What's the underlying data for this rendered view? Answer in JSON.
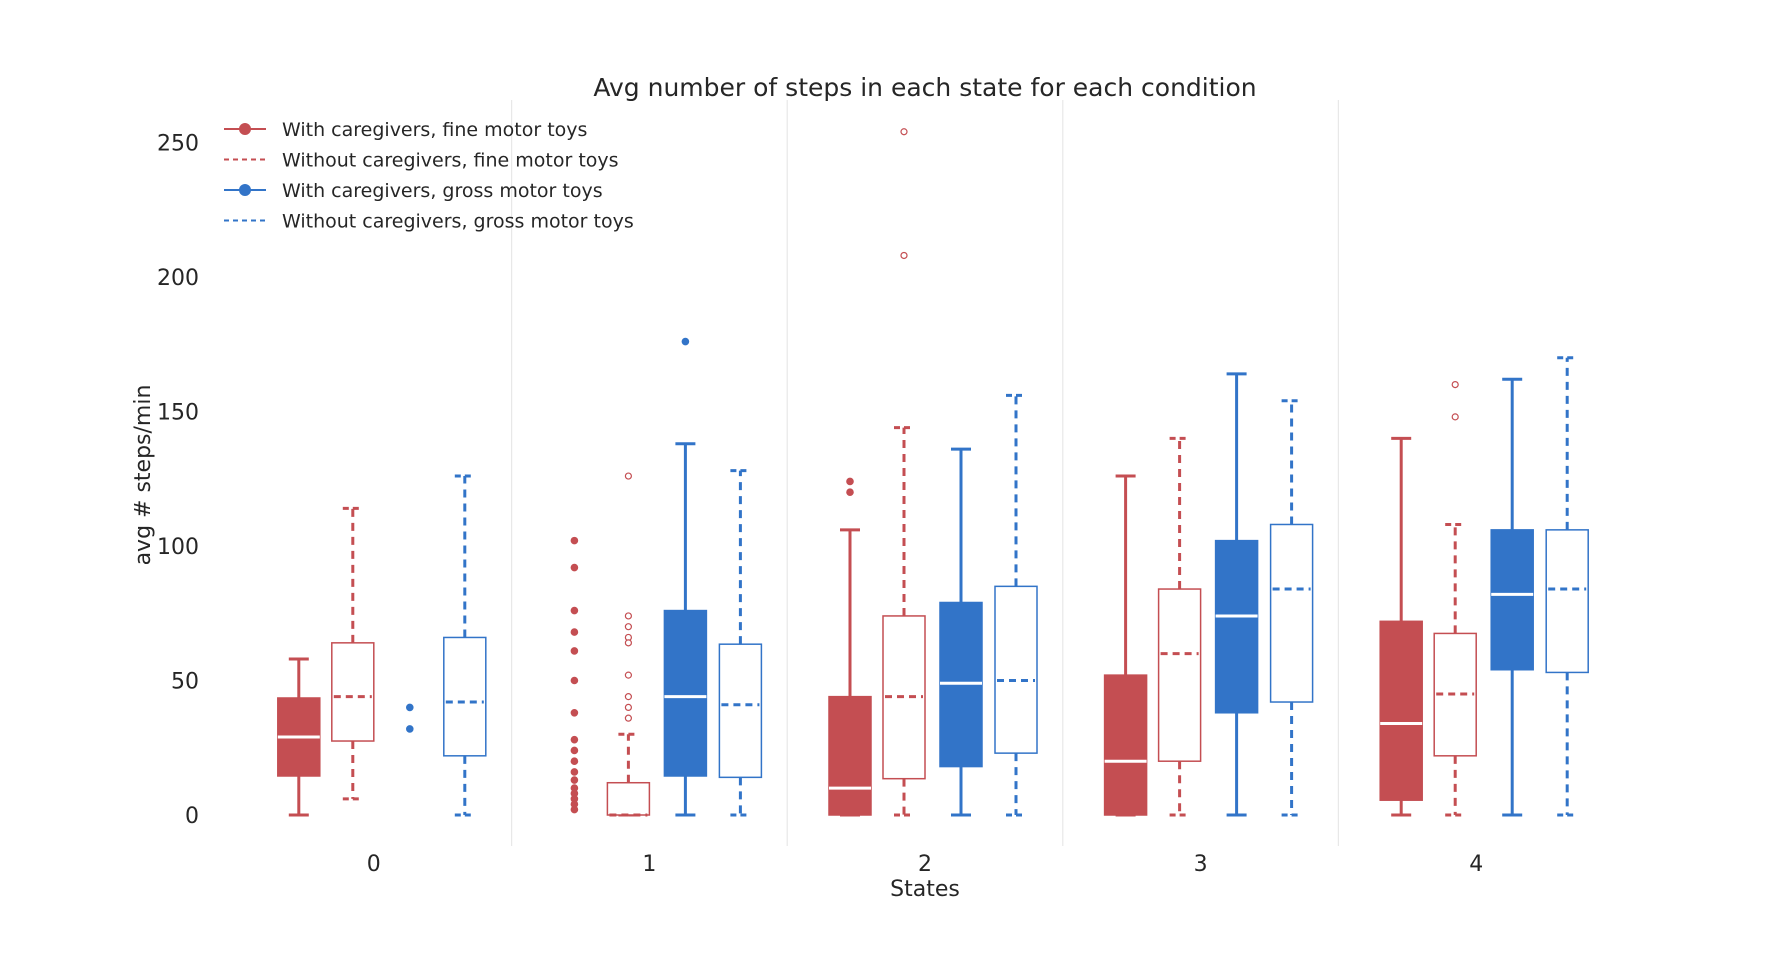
{
  "chart_data": {
    "type": "boxplot",
    "title": "Avg number of steps in each state for each condition",
    "xlabel": "States",
    "ylabel": "avg # steps/min",
    "categories": [
      "0",
      "1",
      "2",
      "3",
      "4"
    ],
    "ylim": [
      -8,
      268
    ],
    "yticks": [
      0,
      50,
      100,
      150,
      200,
      250
    ],
    "grid": "vertical separators between states",
    "legend_position": "top-left",
    "series": [
      {
        "name": "With caregivers, fine motor toys",
        "color": "#c44e52",
        "style": "filled-solid",
        "boxes": [
          {
            "state": "0",
            "whislo": 0,
            "q1": 14.5,
            "med": 29,
            "q3": 43.5,
            "whishi": 58,
            "fliers": []
          },
          {
            "state": "1",
            "whislo": null,
            "q1": null,
            "med": null,
            "q3": null,
            "whishi": null,
            "fliers": [
              102,
              92,
              76,
              68,
              61,
              50,
              38,
              28,
              24,
              20,
              16,
              13,
              10,
              8,
              6,
              4,
              2
            ]
          },
          {
            "state": "2",
            "whislo": 0,
            "q1": 0,
            "med": 10,
            "q3": 44,
            "whishi": 106,
            "fliers": [
              124,
              120
            ]
          },
          {
            "state": "3",
            "whislo": 0,
            "q1": 0,
            "med": 20,
            "q3": 52,
            "whishi": 126,
            "fliers": []
          },
          {
            "state": "4",
            "whislo": 0,
            "q1": 5.5,
            "med": 34,
            "q3": 72,
            "whishi": 140,
            "fliers": []
          }
        ]
      },
      {
        "name": "Without caregivers, fine motor toys",
        "color": "#c44e52",
        "style": "hollow-dashed",
        "boxes": [
          {
            "state": "0",
            "whislo": 6,
            "q1": 27.5,
            "med": 44,
            "q3": 64,
            "whishi": 114,
            "fliers": []
          },
          {
            "state": "1",
            "whislo": 0,
            "q1": 0,
            "med": 0,
            "q3": 12,
            "whishi": 30,
            "fliers": [
              126,
              74,
              70,
              66,
              64,
              52,
              44,
              40,
              36
            ]
          },
          {
            "state": "2",
            "whislo": 0,
            "q1": 13.5,
            "med": 44,
            "q3": 74,
            "whishi": 144,
            "fliers": [
              254,
              208
            ]
          },
          {
            "state": "3",
            "whislo": 0,
            "q1": 20,
            "med": 60,
            "q3": 84,
            "whishi": 140,
            "fliers": []
          },
          {
            "state": "4",
            "whislo": 0,
            "q1": 22,
            "med": 45,
            "q3": 67.5,
            "whishi": 108,
            "fliers": [
              160,
              148
            ]
          }
        ]
      },
      {
        "name": "With caregivers, gross motor toys",
        "color": "#3274c8",
        "style": "filled-solid",
        "boxes": [
          {
            "state": "0",
            "whislo": null,
            "q1": null,
            "med": null,
            "q3": null,
            "whishi": null,
            "fliers": [
              40,
              32
            ]
          },
          {
            "state": "1",
            "whislo": 0,
            "q1": 14.5,
            "med": 44,
            "q3": 76,
            "whishi": 138,
            "fliers": [
              176
            ]
          },
          {
            "state": "2",
            "whislo": 0,
            "q1": 18,
            "med": 49,
            "q3": 79,
            "whishi": 136,
            "fliers": []
          },
          {
            "state": "3",
            "whislo": 0,
            "q1": 38,
            "med": 74,
            "q3": 102,
            "whishi": 164,
            "fliers": []
          },
          {
            "state": "4",
            "whislo": 0,
            "q1": 54,
            "med": 82,
            "q3": 106,
            "whishi": 162,
            "fliers": []
          }
        ]
      },
      {
        "name": "Without caregivers, gross motor toys",
        "color": "#3274c8",
        "style": "hollow-dashed",
        "boxes": [
          {
            "state": "0",
            "whislo": 0,
            "q1": 22,
            "med": 42,
            "q3": 66,
            "whishi": 126,
            "fliers": []
          },
          {
            "state": "1",
            "whislo": 0,
            "q1": 14,
            "med": 41,
            "q3": 63.5,
            "whishi": 128,
            "fliers": []
          },
          {
            "state": "2",
            "whislo": 0,
            "q1": 23,
            "med": 50,
            "q3": 85,
            "whishi": 156,
            "fliers": []
          },
          {
            "state": "3",
            "whislo": 0,
            "q1": 42,
            "med": 84,
            "q3": 108,
            "whishi": 154,
            "fliers": []
          },
          {
            "state": "4",
            "whislo": 0,
            "q1": 53,
            "med": 84,
            "q3": 106,
            "whishi": 170,
            "fliers": []
          }
        ]
      }
    ]
  }
}
